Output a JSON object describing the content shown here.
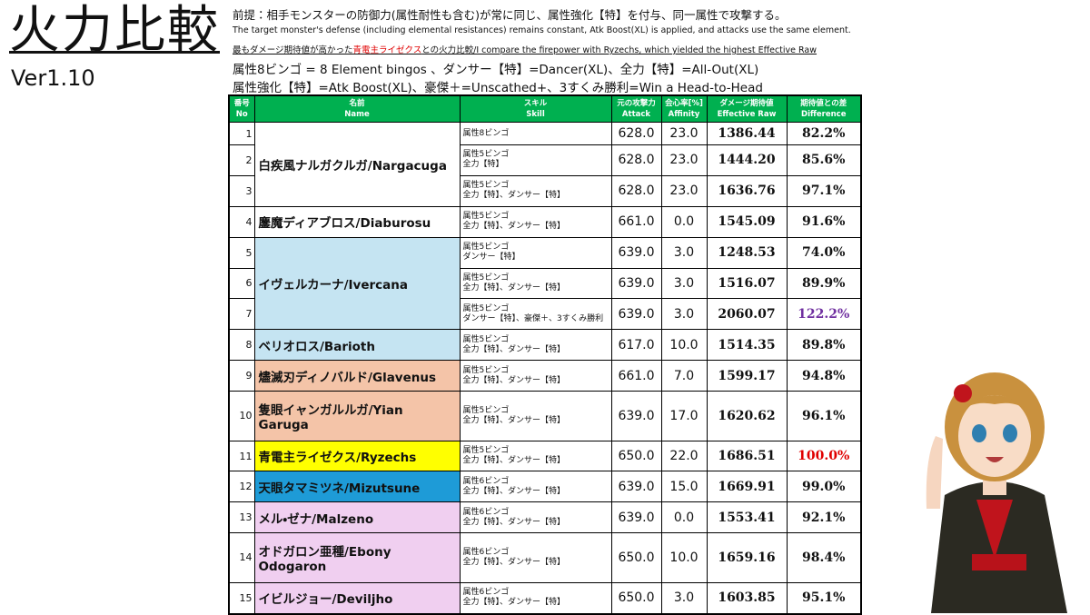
{
  "header": {
    "title": "火力比較",
    "version": "Ver1.10"
  },
  "notes": {
    "premise": "前提：相手モンスターの防御力(属性耐性も含む)が常に同じ、属性強化【特】を付与、同一属性で攻撃する。",
    "premise_en": "The target monster's defense (including elemental resistances) remains constant, Atk Boost(XL) is applied, and attacks use the same element.",
    "compare_parts": [
      "最もダメージ期待値が高かった",
      "青電主ライゼクス",
      "との火力比較/I compare the firepower with Ryzechs, which yielded the highest Effective Raw"
    ],
    "glossary_1": "属性8ビンゴ = 8 Element bingos 、ダンサー【特】=Dancer(XL)、全力【特】=All-Out(XL)",
    "glossary_2": "属性強化【特】=Atk Boost(XL)、豪傑＋=Unscathed+、3すくみ勝利=Win a Head-to-Head"
  },
  "table": {
    "columns": [
      {
        "ja": "番号",
        "en": "No"
      },
      {
        "ja": "名前",
        "en": "Name"
      },
      {
        "ja": "スキル",
        "en": "Skill"
      },
      {
        "ja": "元の攻撃力",
        "en": "Attack"
      },
      {
        "ja": "会心率[%]",
        "en": "Affinity"
      },
      {
        "ja": "ダメージ期待値",
        "en": "Effective Raw"
      },
      {
        "ja": "期待値との差",
        "en": "Difference"
      }
    ],
    "groups": [
      {
        "name": "白疾風ナルガクルガ/Nargacuga",
        "color": "#ffffff",
        "rows": [
          {
            "no": "1",
            "skill": [
              "属性8ビンゴ"
            ],
            "attack": "628.0",
            "affinity": "23.0",
            "raw": "1386.44",
            "diff": "82.2%"
          },
          {
            "no": "2",
            "skill": [
              "属性5ビンゴ",
              "全力【特】"
            ],
            "attack": "628.0",
            "affinity": "23.0",
            "raw": "1444.20",
            "diff": "85.6%"
          },
          {
            "no": "3",
            "skill": [
              "属性5ビンゴ",
              "全力【特】、ダンサー【特】"
            ],
            "attack": "628.0",
            "affinity": "23.0",
            "raw": "1636.76",
            "diff": "97.1%"
          }
        ]
      },
      {
        "name": "鏖魔ディアブロス/Diaburosu",
        "color": "#ffffff",
        "rows": [
          {
            "no": "4",
            "skill": [
              "属性5ビンゴ",
              "全力【特】、ダンサー【特】"
            ],
            "attack": "661.0",
            "affinity": "0.0",
            "raw": "1545.09",
            "diff": "91.6%"
          }
        ]
      },
      {
        "name": "イヴェルカーナ/Ivercana",
        "color": "#c5e4f2",
        "rows": [
          {
            "no": "5",
            "skill": [
              "属性5ビンゴ",
              "ダンサー【特】"
            ],
            "attack": "639.0",
            "affinity": "3.0",
            "raw": "1248.53",
            "diff": "74.0%"
          },
          {
            "no": "6",
            "skill": [
              "属性5ビンゴ",
              "全力【特】、ダンサー【特】"
            ],
            "attack": "639.0",
            "affinity": "3.0",
            "raw": "1516.07",
            "diff": "89.9%"
          },
          {
            "no": "7",
            "skill": [
              "属性5ビンゴ",
              "ダンサー【特】、豪傑＋、3すくみ勝利"
            ],
            "attack": "639.0",
            "affinity": "3.0",
            "raw": "2060.07",
            "diff": "122.2%",
            "diff_color": "#7030a0"
          }
        ]
      },
      {
        "name": "ベリオロス/Barioth",
        "color": "#c5e4f2",
        "rows": [
          {
            "no": "8",
            "skill": [
              "属性5ビンゴ",
              "全力【特】、ダンサー【特】"
            ],
            "attack": "617.0",
            "affinity": "10.0",
            "raw": "1514.35",
            "diff": "89.8%"
          }
        ]
      },
      {
        "name": "燼滅刃ディノバルド/Glavenus",
        "color": "#f4c4a8",
        "rows": [
          {
            "no": "9",
            "skill": [
              "属性5ビンゴ",
              "全力【特】、ダンサー【特】"
            ],
            "attack": "661.0",
            "affinity": "7.0",
            "raw": "1599.17",
            "diff": "94.8%"
          }
        ]
      },
      {
        "name": "隻眼イャンガルルガ/Yian Garuga",
        "color": "#f4c4a8",
        "rows": [
          {
            "no": "10",
            "skill": [
              "属性5ビンゴ",
              "全力【特】、ダンサー【特】"
            ],
            "attack": "639.0",
            "affinity": "17.0",
            "raw": "1620.62",
            "diff": "96.1%"
          }
        ]
      },
      {
        "name": "青電主ライゼクス/Ryzechs",
        "color": "#ffff00",
        "rows": [
          {
            "no": "11",
            "skill": [
              "属性5ビンゴ",
              "全力【特】、ダンサー【特】"
            ],
            "attack": "650.0",
            "affinity": "22.0",
            "raw": "1686.51",
            "diff": "100.0%",
            "diff_color": "#e00000"
          }
        ]
      },
      {
        "name": "天眼タマミツネ/Mizutsune",
        "color": "#1e9bd7",
        "rows": [
          {
            "no": "12",
            "skill": [
              "属性6ビンゴ",
              "全力【特】、ダンサー【特】"
            ],
            "attack": "639.0",
            "affinity": "15.0",
            "raw": "1669.91",
            "diff": "99.0%"
          }
        ]
      },
      {
        "name": "メル・ゼナ/Malzeno",
        "color": "#f0cff0",
        "rows": [
          {
            "no": "13",
            "skill": [
              "属性6ビンゴ",
              "全力【特】、ダンサー【特】"
            ],
            "attack": "639.0",
            "affinity": "0.0",
            "raw": "1553.41",
            "diff": "92.1%"
          }
        ]
      },
      {
        "name": "オドガロン亜種/Ebony Odogaron",
        "color": "#f0cff0",
        "rows": [
          {
            "no": "14",
            "skill": [
              "属性6ビンゴ",
              "全力【特】、ダンサー【特】"
            ],
            "attack": "650.0",
            "affinity": "10.0",
            "raw": "1659.16",
            "diff": "98.4%"
          }
        ]
      },
      {
        "name": "イビルジョー/Deviljho",
        "color": "#f0cff0",
        "rows": [
          {
            "no": "15",
            "skill": [
              "属性6ビンゴ",
              "全力【特】、ダンサー【特】"
            ],
            "attack": "650.0",
            "affinity": "3.0",
            "raw": "1603.85",
            "diff": "95.1%"
          }
        ]
      }
    ]
  }
}
